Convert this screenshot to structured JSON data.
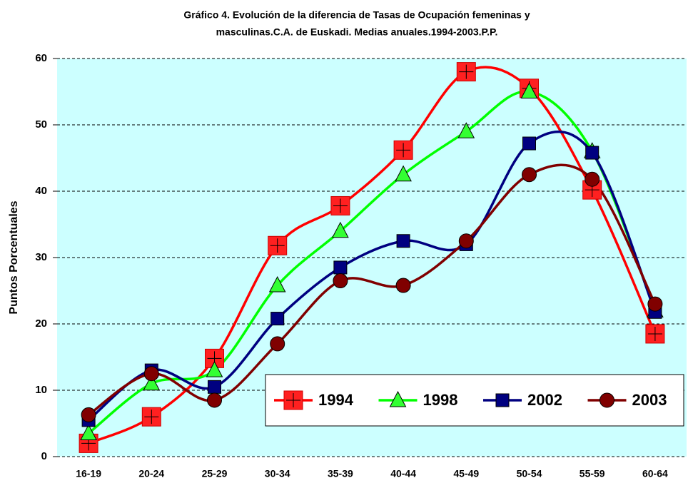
{
  "chart_data": {
    "type": "line",
    "title": [
      "Gráfico 4.  Evolución de la diferencia de Tasas de Ocupación femeninas y",
      "masculinas.C.A. de Euskadi. Medias anuales.1994-2003.P.P."
    ],
    "y_label": "Puntos Porcentuales",
    "categories": [
      "16-19",
      "20-24",
      "25-29",
      "30-34",
      "35-39",
      "40-44",
      "45-49",
      "50-54",
      "55-59",
      "60-64"
    ],
    "series": [
      {
        "name": "1994",
        "color": "#ff0000",
        "marker": "square-cross",
        "marker_color": "#ff2020",
        "values": [
          2,
          6,
          14.8,
          31.8,
          37.8,
          46.2,
          58,
          55.5,
          40.2,
          18.5
        ]
      },
      {
        "name": "1998",
        "color": "#00ff00",
        "marker": "triangle",
        "marker_color": "#33ff33",
        "values": [
          3.5,
          11,
          13,
          25.8,
          34,
          42.5,
          49,
          55,
          46,
          22
        ]
      },
      {
        "name": "2002",
        "color": "#000080",
        "marker": "square",
        "marker_color": "#000080",
        "values": [
          5.5,
          13,
          10.5,
          20.8,
          28.5,
          32.5,
          32,
          47.2,
          45.8,
          21.8
        ]
      },
      {
        "name": "2003",
        "color": "#800000",
        "marker": "circle",
        "marker_color": "#800000",
        "values": [
          6.3,
          12.5,
          8.5,
          17,
          26.5,
          25.8,
          32.5,
          42.5,
          41.8,
          23
        ]
      }
    ],
    "ylim": [
      0,
      60
    ],
    "yticks": [
      0,
      10,
      20,
      30,
      40,
      50,
      60
    ],
    "grid": true,
    "smooth": true,
    "plot_background": "#ccffff",
    "legend": "lower right"
  }
}
